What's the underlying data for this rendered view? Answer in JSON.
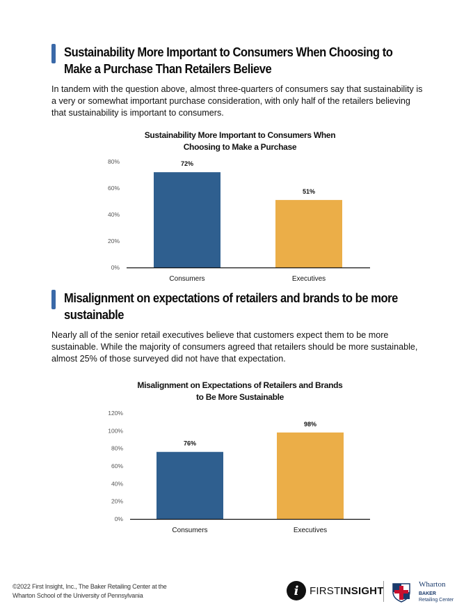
{
  "sections": [
    {
      "title": "Sustainability More Important to Consumers When Choosing to Make a Purchase Than Retailers Believe",
      "paragraph": "In tandem with the question above, almost three-quarters of consumers say that sustainability is a very or somewhat important purchase consideration, with only half of the retailers believing that sustainability is important to consumers."
    },
    {
      "title": "Misalignment on expectations of retailers and brands to be more sustainable",
      "paragraph": "Nearly all of the senior retail executives believe that customers expect them to be more sustainable.  While the majority of consumers agreed that retailers should be more sustainable, almost 25% of those surveyed did not have that expectation."
    }
  ],
  "chart_data": [
    {
      "type": "bar",
      "title": "Sustainability More Important to Consumers When Choosing to Make a Purchase",
      "categories": [
        "Consumers",
        "Executives"
      ],
      "values": [
        72,
        51
      ],
      "value_labels": [
        "72%",
        "51%"
      ],
      "ylim": [
        0,
        80
      ],
      "yticks": [
        "0%",
        "20%",
        "40%",
        "60%",
        "80%"
      ],
      "ytick_values": [
        0,
        20,
        40,
        60,
        80
      ],
      "colors": [
        "#2f5f8f",
        "#ebae48"
      ],
      "grid": false,
      "legend": "none"
    },
    {
      "type": "bar",
      "title": "Misalignment on Expectations of Retailers and Brands to Be More Sustainable",
      "categories": [
        "Consumers",
        "Executives"
      ],
      "values": [
        76,
        98
      ],
      "value_labels": [
        "76%",
        "98%"
      ],
      "ylim": [
        0,
        120
      ],
      "yticks": [
        "0%",
        "20%",
        "40%",
        "60%",
        "80%",
        "100%",
        "120%"
      ],
      "ytick_values": [
        0,
        20,
        40,
        60,
        80,
        100,
        120
      ],
      "colors": [
        "#2f5f8f",
        "#ebae48"
      ],
      "grid": false,
      "legend": "none"
    }
  ],
  "footer": {
    "copyright_line1": "©2022 First Insight, Inc., The Baker Retailing Center at the",
    "copyright_line2": "Wharton School of the University of Pennsylvania",
    "logo_first": "FIRST",
    "logo_insight": "INSIGHT",
    "wharton": "Wharton",
    "baker": "BAKER",
    "retailing_center": "Retailing Center"
  },
  "accent_color": "#3a69a8"
}
